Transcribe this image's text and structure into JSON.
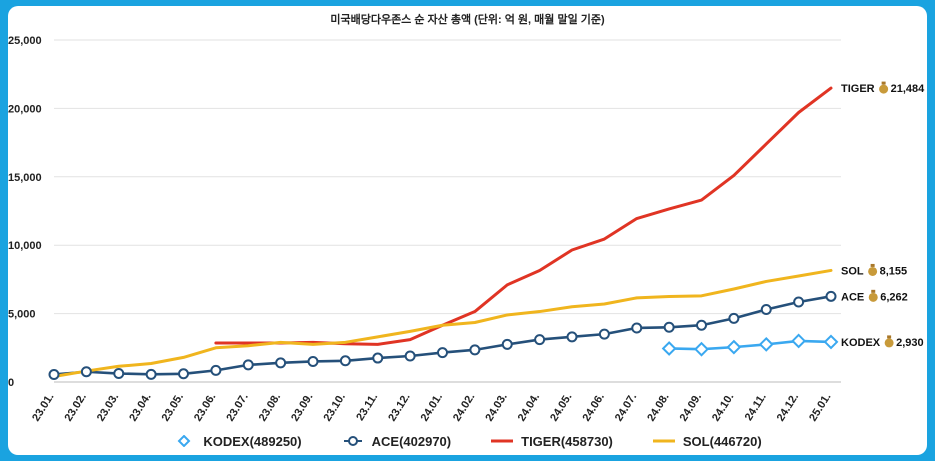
{
  "chart_data": {
    "type": "line",
    "title": "미국배당다우존스 순 자산 총액 (단위: 억 원, 매월 말일 기준)",
    "xlabel": "",
    "ylabel": "",
    "ylim": [
      0,
      25000
    ],
    "yticks": [
      "0",
      "5,000",
      "10,000",
      "15,000",
      "20,000",
      "25,000"
    ],
    "ytick_values": [
      0,
      5000,
      10000,
      15000,
      20000,
      25000
    ],
    "categories": [
      "23.01.",
      "23.02.",
      "23.03.",
      "23.04.",
      "23.05.",
      "23.06.",
      "23.07.",
      "23.08.",
      "23.09.",
      "23.10.",
      "23.11.",
      "23.12.",
      "24.01.",
      "24.02.",
      "24.03.",
      "24.04.",
      "24.05.",
      "24.06.",
      "24.07.",
      "24.08.",
      "24.09.",
      "24.10.",
      "24.11.",
      "24.12.",
      "25.01."
    ],
    "grid": "horizontal",
    "legend": "bottom",
    "series": [
      {
        "name": "KODEX(489250)",
        "color": "#3aa8f0",
        "marker": "diamond",
        "values": [
          null,
          null,
          null,
          null,
          null,
          null,
          null,
          null,
          null,
          null,
          null,
          null,
          null,
          null,
          null,
          null,
          null,
          null,
          null,
          2450,
          2400,
          2550,
          2750,
          3000,
          2930
        ],
        "end_label": "KODEX",
        "end_value": "2,930"
      },
      {
        "name": "ACE(402970)",
        "color": "#25507a",
        "marker": "circle",
        "values": [
          550,
          750,
          620,
          560,
          600,
          850,
          1250,
          1400,
          1500,
          1550,
          1750,
          1900,
          2150,
          2350,
          2750,
          3100,
          3300,
          3500,
          3950,
          4000,
          4150,
          4650,
          5300,
          5850,
          6262
        ],
        "end_label": "ACE",
        "end_value": "6,262"
      },
      {
        "name": "TIGER(458730)",
        "color": "#e03424",
        "marker": "none",
        "values": [
          null,
          null,
          null,
          null,
          null,
          2850,
          2850,
          2850,
          2900,
          2800,
          2750,
          3100,
          4150,
          5150,
          7100,
          8150,
          9650,
          10450,
          11950,
          12650,
          13300,
          15100,
          17400,
          19700,
          21484
        ],
        "end_label": "TIGER",
        "end_value": "21,484"
      },
      {
        "name": "SOL(446720)",
        "color": "#f0b51e",
        "marker": "none",
        "values": [
          400,
          800,
          1150,
          1350,
          1800,
          2500,
          2650,
          2900,
          2750,
          2900,
          3300,
          3700,
          4150,
          4350,
          4900,
          5150,
          5500,
          5700,
          6150,
          6250,
          6300,
          6800,
          7350,
          7750,
          8155
        ],
        "end_label": "SOL",
        "end_value": "8,155"
      }
    ]
  }
}
